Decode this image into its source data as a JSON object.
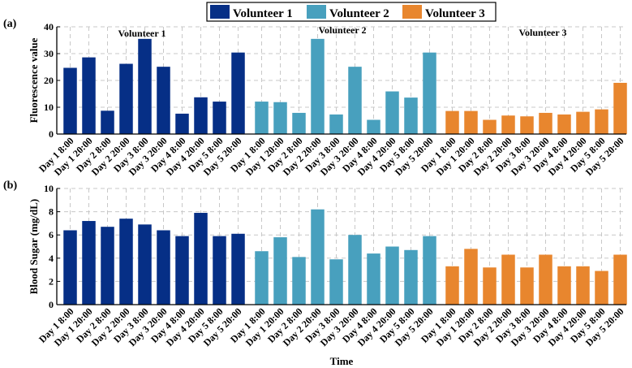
{
  "chart_data": [
    {
      "type": "bar",
      "panel_label": "(a)",
      "ylabel": "Fluorescence value",
      "ylim": [
        0,
        40
      ],
      "yticks": [
        0,
        10,
        20,
        30,
        40
      ],
      "grid": true,
      "categories": [
        "Day 1 8:00",
        "Day 1 20:00",
        "Day 2 8:00",
        "Day 2 20:00",
        "Day 3 8:00",
        "Day 3 20:00",
        "Day 4 8:00",
        "Day 4 20:00",
        "Day 5 8:00",
        "Day 5 20:00"
      ],
      "series": [
        {
          "name": "Volunteer 1",
          "color": "#062f86",
          "values": [
            24.7,
            28.6,
            8.7,
            26.2,
            35.5,
            25.1,
            7.6,
            13.7,
            12.1,
            30.4
          ]
        },
        {
          "name": "Volunteer 2",
          "color": "#48a0be",
          "values": [
            12.1,
            11.9,
            7.9,
            35.5,
            7.3,
            25.1,
            5.3,
            15.9,
            13.6,
            30.4
          ]
        },
        {
          "name": "Volunteer 3",
          "color": "#e8862e",
          "values": [
            8.6,
            8.6,
            5.3,
            6.9,
            6.6,
            7.9,
            7.3,
            8.3,
            9.2,
            19.1
          ]
        }
      ]
    },
    {
      "type": "bar",
      "panel_label": "(b)",
      "ylabel": "Blood Sugar (mg/dL)",
      "xlabel": "Time",
      "ylim": [
        0,
        10
      ],
      "yticks": [
        0,
        2,
        4,
        6,
        8,
        10
      ],
      "grid": true,
      "categories": [
        "Day 1 8:00",
        "Day 1 20:00",
        "Day 2 8:00",
        "Day 2 20:00",
        "Day 3 8:00",
        "Day 3 20:00",
        "Day 4 8:00",
        "Day 4 20:00",
        "Day 5 8:00",
        "Day 5 20:00"
      ],
      "series": [
        {
          "name": "Volunteer 1",
          "color": "#062f86",
          "values": [
            6.4,
            7.2,
            6.7,
            7.4,
            6.9,
            6.4,
            5.9,
            7.9,
            5.9,
            6.1
          ]
        },
        {
          "name": "Volunteer 2",
          "color": "#48a0be",
          "values": [
            4.6,
            5.8,
            4.1,
            8.2,
            3.9,
            6.0,
            4.4,
            5.0,
            4.7,
            5.9
          ]
        },
        {
          "name": "Volunteer 3",
          "color": "#e8862e",
          "values": [
            3.3,
            4.8,
            3.2,
            4.3,
            3.2,
            4.3,
            3.3,
            3.3,
            2.9,
            4.3
          ]
        }
      ]
    }
  ],
  "legend": {
    "position": "top-center",
    "entries": [
      "Volunteer 1",
      "Volunteer 2",
      "Volunteer 3"
    ]
  }
}
